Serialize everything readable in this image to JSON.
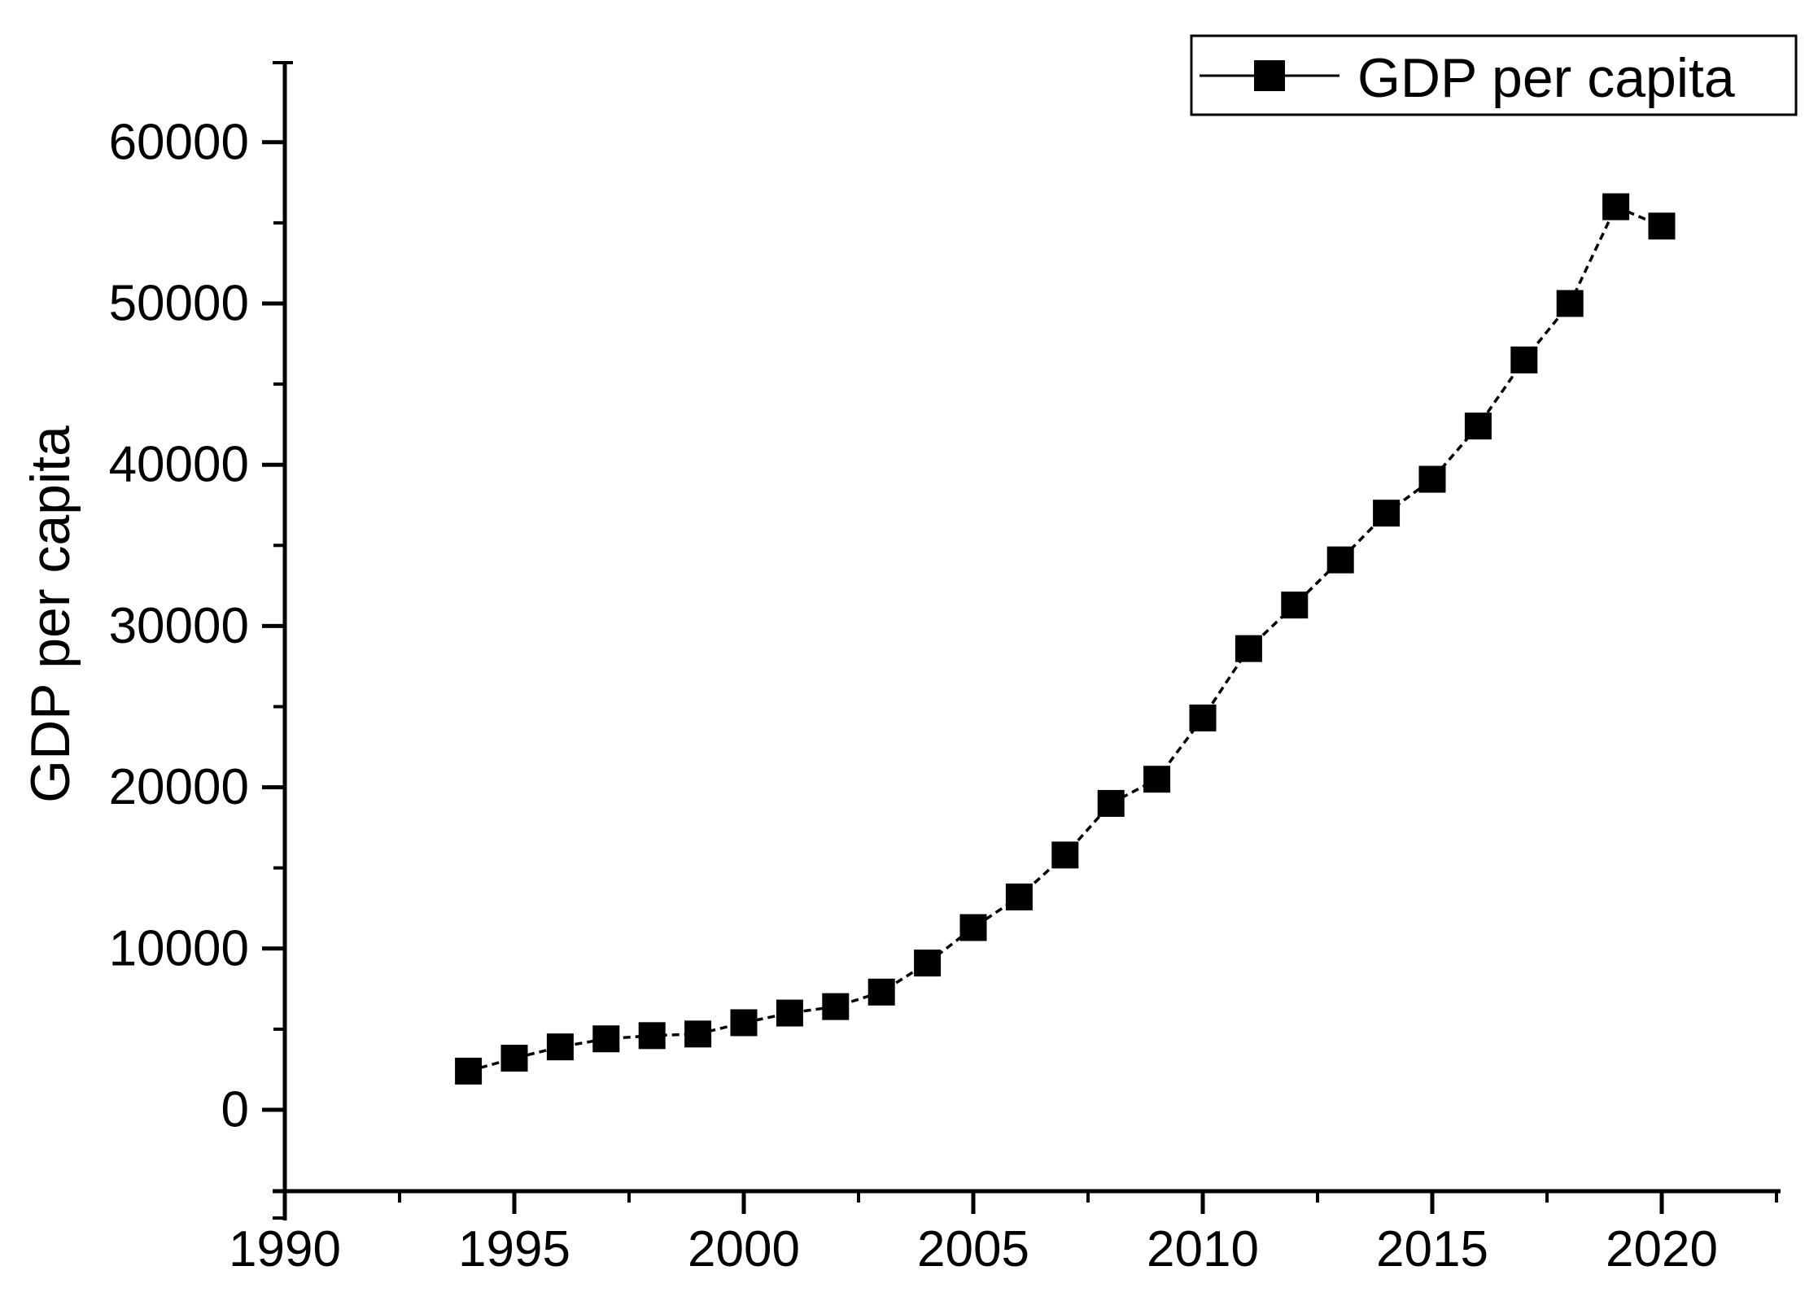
{
  "figure": {
    "background": "#ffffff",
    "foreground": "#000000"
  },
  "legend": {
    "label": "GDP per capita",
    "marker": "filled-square-icon",
    "position": "top-right"
  },
  "y_axis": {
    "title": "GDP per capita",
    "tick_labels": [
      "0",
      "10000",
      "20000",
      "30000",
      "40000",
      "50000",
      "60000"
    ]
  },
  "x_axis": {
    "title": "",
    "tick_labels": [
      "1990",
      "1995",
      "2000",
      "2005",
      "2010",
      "2015",
      "2020"
    ]
  },
  "chart_data": {
    "type": "line",
    "title": "",
    "xlabel": "",
    "ylabel": "GDP per capita",
    "grid": false,
    "xlim": [
      1989.7,
      2022.6
    ],
    "ylim": [
      -5000,
      65000
    ],
    "x_major_ticks": [
      1990,
      1995,
      2000,
      2005,
      2010,
      2015,
      2020
    ],
    "x_minor_ticks": [
      1992.5,
      1997.5,
      2002.5,
      2007.5,
      2012.5,
      2017.5,
      2022.5
    ],
    "y_major_ticks": [
      0,
      10000,
      20000,
      30000,
      40000,
      50000,
      60000
    ],
    "y_minor_ticks": [
      5000,
      15000,
      25000,
      35000,
      45000,
      55000
    ],
    "x": [
      1994,
      1995,
      1996,
      1997,
      1998,
      1999,
      2000,
      2001,
      2002,
      2003,
      2004,
      2005,
      2006,
      2007,
      2008,
      2009,
      2010,
      2011,
      2012,
      2013,
      2014,
      2015,
      2016,
      2017,
      2018,
      2019,
      2020
    ],
    "series": [
      {
        "name": "GDP per capita",
        "marker": "filled-square",
        "line_style": "dashed",
        "color": "#000000",
        "values": [
          2400,
          3200,
          3900,
          4400,
          4600,
          4700,
          5400,
          6000,
          6400,
          7300,
          9100,
          11300,
          13200,
          15800,
          19000,
          20500,
          24300,
          28600,
          31300,
          34100,
          37000,
          39100,
          42400,
          46500,
          50000,
          56000,
          54800
        ]
      }
    ],
    "legend": {
      "position": "top-right",
      "entries": [
        "GDP per capita"
      ]
    }
  }
}
